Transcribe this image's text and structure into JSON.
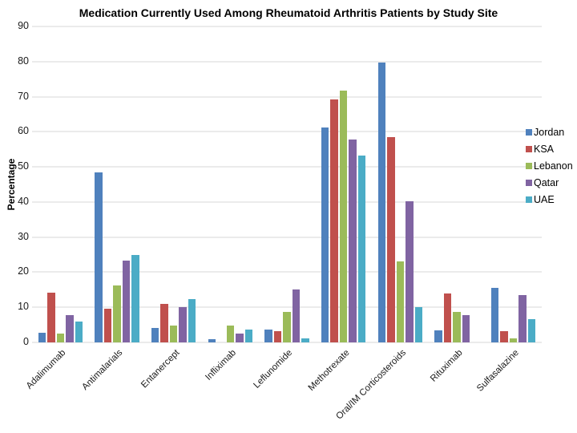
{
  "chart_data": {
    "type": "bar",
    "title": "Medication Currently Used Among Rheumatoid Arthritis Patients by Study Site",
    "xlabel": "",
    "ylabel": "Percentage",
    "ylim": [
      0,
      90
    ],
    "ytick_step": 10,
    "grid": true,
    "legend_position": "right",
    "categories": [
      "Adalimumab",
      "Antimalarials",
      "Entanercept",
      "Infliximab",
      "Leflunomide",
      "Methotrexate",
      "Oral/IM Corticosteroids",
      "Rituximab",
      "Sulfasalazine"
    ],
    "series": [
      {
        "name": "Jordan",
        "color": "#4F81BD",
        "values": [
          2.7,
          48.4,
          4.0,
          0.8,
          3.6,
          61.2,
          79.8,
          3.5,
          15.6
        ]
      },
      {
        "name": "KSA",
        "color": "#C0504D",
        "values": [
          14.1,
          9.5,
          11.0,
          0,
          3.1,
          69.3,
          58.4,
          14.0,
          3.1
        ]
      },
      {
        "name": "Lebanon",
        "color": "#9BBB59",
        "values": [
          2.6,
          16.2,
          4.8,
          4.9,
          8.7,
          71.8,
          23.0,
          8.6,
          1.2
        ]
      },
      {
        "name": "Qatar",
        "color": "#8064A2",
        "values": [
          7.8,
          23.2,
          10.0,
          2.5,
          15.0,
          57.7,
          40.2,
          7.7,
          13.5
        ]
      },
      {
        "name": "UAE",
        "color": "#4BACC6",
        "values": [
          5.9,
          24.8,
          12.3,
          3.7,
          1.1,
          53.2,
          10.1,
          0,
          6.7
        ]
      }
    ]
  }
}
